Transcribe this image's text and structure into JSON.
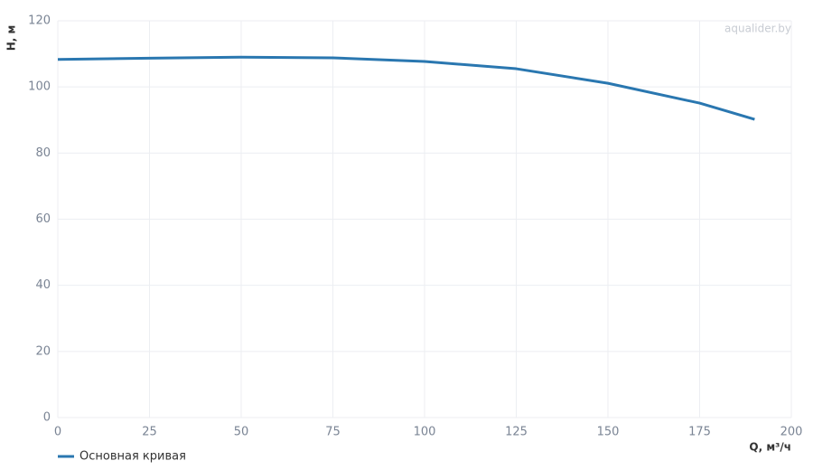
{
  "chart_data": {
    "type": "line",
    "watermark": "aqualider.by",
    "y_label": "H, м",
    "x_label": "Q, м³/ч",
    "x": [
      0,
      25,
      50,
      75,
      100,
      125,
      150,
      175,
      190
    ],
    "series": [
      {
        "name": "Основная кривая",
        "color": "#2a77b0",
        "values": [
          108.3,
          108.7,
          109.0,
          108.8,
          107.7,
          105.5,
          101.1,
          95.1,
          90.2
        ]
      }
    ],
    "xlim": [
      0,
      200
    ],
    "xticks": [
      0,
      25,
      50,
      75,
      100,
      125,
      150,
      175,
      200
    ],
    "ylim": [
      0,
      120
    ],
    "yticks": [
      0,
      20,
      40,
      60,
      80,
      100,
      120
    ],
    "grid": true,
    "legend": "bottom-left"
  }
}
